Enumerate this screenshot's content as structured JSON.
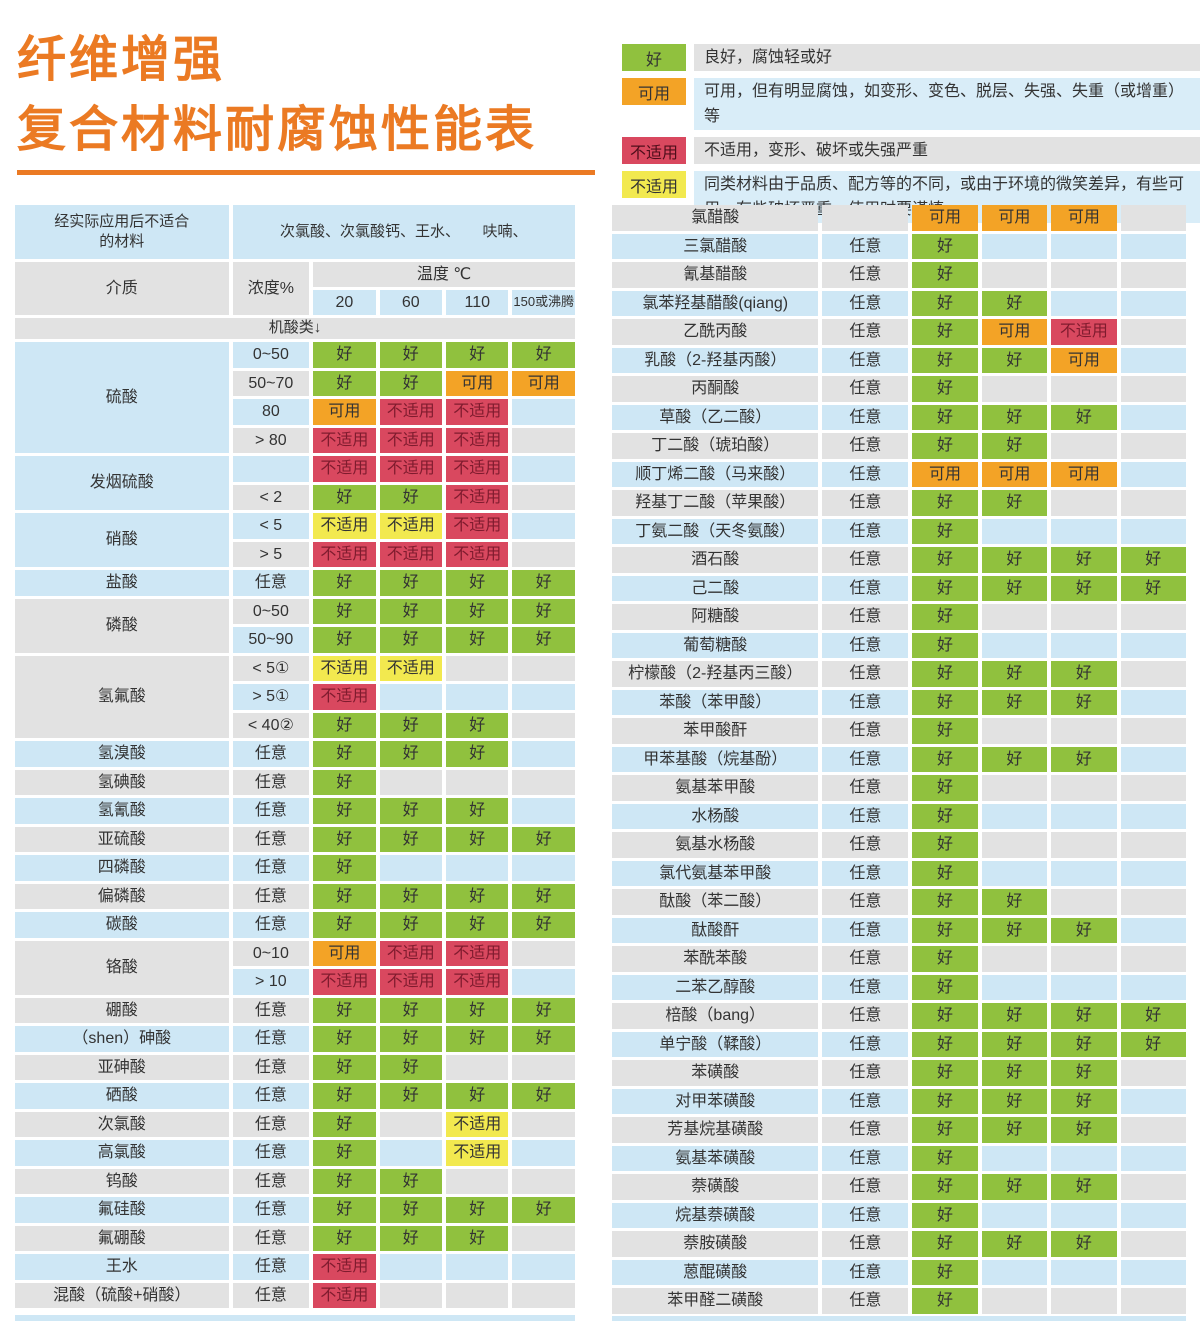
{
  "title": {
    "line1": "纤维增强",
    "line2": "复合材料耐腐蚀性能表"
  },
  "colors": {
    "accent": "#EB7A23",
    "good": "#90C13E",
    "usable": "#F3A326",
    "bad": "#D9485F",
    "caution": "#F2E94F",
    "row_blue": "#CEE7F5",
    "row_gray": "#E2E2E2",
    "bad_text": "#7F1B2E",
    "text": "#333333"
  },
  "legend": [
    {
      "label": "好",
      "type": "good",
      "desc": "良好，腐蚀轻或好"
    },
    {
      "label": "可用",
      "type": "usable",
      "desc": "可用，但有明显腐蚀，如变形、变色、脱层、失强、失重（或增重）等"
    },
    {
      "label": "不适用",
      "type": "bad",
      "desc": "不适用，变形、破坏或失强严重"
    },
    {
      "label": "不适用",
      "type": "caution",
      "desc": "同类材料由于品质、配方等的不同，或由于环境的微笑差异，有些可用，有些破坏严重，使用时要谨慎"
    }
  ],
  "cell_labels": {
    "good": "好",
    "usable": "可用",
    "bad": "不适用",
    "caution": "不适用"
  },
  "left_table": {
    "header": {
      "unsuitable_label": "经实际应用后不适合\n的材料",
      "unsuitable_value": "次氯酸、次氯酸钙、王水、　　呋喃、",
      "medium": "介质",
      "concentration": "浓度%",
      "temperature": "温度 ℃",
      "temps": [
        "20",
        "60",
        "110",
        "150或沸腾"
      ],
      "section": "机酸类↓"
    },
    "groups": [
      {
        "medium": "硫酸",
        "rows": [
          {
            "conc": "0~50",
            "cells": [
              "good",
              "good",
              "good",
              "good"
            ]
          },
          {
            "conc": "50~70",
            "cells": [
              "good",
              "good",
              "usable",
              "usable"
            ]
          },
          {
            "conc": "80",
            "cells": [
              "usable",
              "bad",
              "bad",
              ""
            ]
          },
          {
            "conc": "> 80",
            "cells": [
              "bad",
              "bad",
              "bad",
              ""
            ]
          }
        ]
      },
      {
        "medium": "发烟硫酸",
        "rows": [
          {
            "conc": "",
            "cells": [
              "bad",
              "bad",
              "bad",
              ""
            ]
          },
          {
            "conc": "< 2",
            "cells": [
              "good",
              "good",
              "bad",
              ""
            ]
          }
        ]
      },
      {
        "medium": "硝酸",
        "rows": [
          {
            "conc": "< 5",
            "cells": [
              "caution",
              "caution",
              "bad",
              ""
            ]
          },
          {
            "conc": "> 5",
            "cells": [
              "bad",
              "bad",
              "bad",
              ""
            ]
          }
        ]
      },
      {
        "medium": "盐酸",
        "rows": [
          {
            "conc": "任意",
            "cells": [
              "good",
              "good",
              "good",
              "good"
            ]
          }
        ]
      },
      {
        "medium": "磷酸",
        "rows": [
          {
            "conc": "0~50",
            "cells": [
              "good",
              "good",
              "good",
              "good"
            ]
          },
          {
            "conc": "50~90",
            "cells": [
              "good",
              "good",
              "good",
              "good"
            ]
          }
        ]
      },
      {
        "medium": "氢氟酸",
        "rows": [
          {
            "conc": "< 5①",
            "cells": [
              "caution",
              "caution",
              "",
              ""
            ]
          },
          {
            "conc": "> 5①",
            "cells": [
              "bad",
              "",
              "",
              ""
            ]
          },
          {
            "conc": "< 40②",
            "cells": [
              "good",
              "good",
              "good",
              ""
            ]
          }
        ]
      },
      {
        "medium": "氢溴酸",
        "rows": [
          {
            "conc": "任意",
            "cells": [
              "good",
              "good",
              "good",
              ""
            ]
          }
        ]
      },
      {
        "medium": "氢碘酸",
        "rows": [
          {
            "conc": "任意",
            "cells": [
              "good",
              "",
              "",
              ""
            ]
          }
        ]
      },
      {
        "medium": "氢氰酸",
        "rows": [
          {
            "conc": "任意",
            "cells": [
              "good",
              "good",
              "good",
              ""
            ]
          }
        ]
      },
      {
        "medium": "亚硫酸",
        "rows": [
          {
            "conc": "任意",
            "cells": [
              "good",
              "good",
              "good",
              "good"
            ]
          }
        ]
      },
      {
        "medium": "四磷酸",
        "rows": [
          {
            "conc": "任意",
            "cells": [
              "good",
              "",
              "",
              ""
            ]
          }
        ]
      },
      {
        "medium": "偏磷酸",
        "rows": [
          {
            "conc": "任意",
            "cells": [
              "good",
              "good",
              "good",
              "good"
            ]
          }
        ]
      },
      {
        "medium": "碳酸",
        "rows": [
          {
            "conc": "任意",
            "cells": [
              "good",
              "good",
              "good",
              "good"
            ]
          }
        ]
      },
      {
        "medium": "铬酸",
        "rows": [
          {
            "conc": "0~10",
            "cells": [
              "usable",
              "bad",
              "bad",
              ""
            ]
          },
          {
            "conc": "> 10",
            "cells": [
              "bad",
              "bad",
              "bad",
              ""
            ]
          }
        ]
      },
      {
        "medium": "硼酸",
        "rows": [
          {
            "conc": "任意",
            "cells": [
              "good",
              "good",
              "good",
              "good"
            ]
          }
        ]
      },
      {
        "medium": "（shen）砷酸",
        "rows": [
          {
            "conc": "任意",
            "cells": [
              "good",
              "good",
              "good",
              "good"
            ]
          }
        ]
      },
      {
        "medium": "亚砷酸",
        "rows": [
          {
            "conc": "任意",
            "cells": [
              "good",
              "good",
              "",
              ""
            ]
          }
        ]
      },
      {
        "medium": "硒酸",
        "rows": [
          {
            "conc": "任意",
            "cells": [
              "good",
              "good",
              "good",
              "good"
            ]
          }
        ]
      },
      {
        "medium": "次氯酸",
        "rows": [
          {
            "conc": "任意",
            "cells": [
              "good",
              "",
              "caution",
              ""
            ]
          }
        ]
      },
      {
        "medium": "高氯酸",
        "rows": [
          {
            "conc": "任意",
            "cells": [
              "good",
              "",
              "caution",
              ""
            ]
          }
        ]
      },
      {
        "medium": "钨酸",
        "rows": [
          {
            "conc": "任意",
            "cells": [
              "good",
              "good",
              "",
              ""
            ]
          }
        ]
      },
      {
        "medium": "氟硅酸",
        "rows": [
          {
            "conc": "任意",
            "cells": [
              "good",
              "good",
              "good",
              "good"
            ]
          }
        ]
      },
      {
        "medium": "氟硼酸",
        "rows": [
          {
            "conc": "任意",
            "cells": [
              "good",
              "good",
              "good",
              ""
            ]
          }
        ]
      },
      {
        "medium": "王水",
        "rows": [
          {
            "conc": "任意",
            "cells": [
              "bad",
              "",
              "",
              ""
            ]
          }
        ]
      },
      {
        "medium": "混酸（硫酸+硝酸）",
        "rows": [
          {
            "conc": "任意",
            "cells": [
              "bad",
              "",
              "",
              ""
            ]
          }
        ]
      }
    ]
  },
  "right_table": {
    "rows": [
      {
        "name": "氯醋酸",
        "conc": "",
        "cells": [
          "usable",
          "usable",
          "usable",
          ""
        ]
      },
      {
        "name": "三氯醋酸",
        "conc": "任意",
        "cells": [
          "good",
          "",
          "",
          ""
        ]
      },
      {
        "name": "氰基醋酸",
        "conc": "任意",
        "cells": [
          "good",
          "",
          "",
          ""
        ]
      },
      {
        "name": "氯苯羟基醋酸(qiang)",
        "conc": "任意",
        "cells": [
          "good",
          "good",
          "",
          ""
        ]
      },
      {
        "name": "乙酰丙酸",
        "conc": "任意",
        "cells": [
          "good",
          "usable",
          "bad",
          ""
        ]
      },
      {
        "name": "乳酸（2-羟基丙酸）",
        "conc": "任意",
        "cells": [
          "good",
          "good",
          "usable",
          ""
        ]
      },
      {
        "name": "丙酮酸",
        "conc": "任意",
        "cells": [
          "good",
          "",
          "",
          ""
        ]
      },
      {
        "name": "草酸（乙二酸）",
        "conc": "任意",
        "cells": [
          "good",
          "good",
          "good",
          ""
        ]
      },
      {
        "name": "丁二酸（琥珀酸）",
        "conc": "任意",
        "cells": [
          "good",
          "good",
          "",
          ""
        ]
      },
      {
        "name": "顺丁烯二酸（马来酸）",
        "conc": "任意",
        "cells": [
          "usable",
          "usable",
          "usable",
          ""
        ]
      },
      {
        "name": "羟基丁二酸（苹果酸）",
        "conc": "任意",
        "cells": [
          "good",
          "good",
          "",
          ""
        ]
      },
      {
        "name": "丁氨二酸（天冬氨酸）",
        "conc": "任意",
        "cells": [
          "good",
          "",
          "",
          ""
        ]
      },
      {
        "name": "酒石酸",
        "conc": "任意",
        "cells": [
          "good",
          "good",
          "good",
          "good"
        ]
      },
      {
        "name": "己二酸",
        "conc": "任意",
        "cells": [
          "good",
          "good",
          "good",
          "good"
        ]
      },
      {
        "name": "阿糖酸",
        "conc": "任意",
        "cells": [
          "good",
          "",
          "",
          ""
        ]
      },
      {
        "name": "葡萄糖酸",
        "conc": "任意",
        "cells": [
          "good",
          "",
          "",
          ""
        ]
      },
      {
        "name": "柠檬酸（2-羟基丙三酸）",
        "conc": "任意",
        "cells": [
          "good",
          "good",
          "good",
          ""
        ]
      },
      {
        "name": "苯酸（苯甲酸）",
        "conc": "任意",
        "cells": [
          "good",
          "good",
          "good",
          ""
        ]
      },
      {
        "name": "苯甲酸酐",
        "conc": "任意",
        "cells": [
          "good",
          "",
          "",
          ""
        ]
      },
      {
        "name": "甲苯基酸（烷基酚）",
        "conc": "任意",
        "cells": [
          "good",
          "good",
          "good",
          ""
        ]
      },
      {
        "name": "氨基苯甲酸",
        "conc": "任意",
        "cells": [
          "good",
          "",
          "",
          ""
        ]
      },
      {
        "name": "水杨酸",
        "conc": "任意",
        "cells": [
          "good",
          "",
          "",
          ""
        ]
      },
      {
        "name": "氨基水杨酸",
        "conc": "任意",
        "cells": [
          "good",
          "",
          "",
          ""
        ]
      },
      {
        "name": "氯代氨基苯甲酸",
        "conc": "任意",
        "cells": [
          "good",
          "",
          "",
          ""
        ]
      },
      {
        "name": "酞酸（苯二酸）",
        "conc": "任意",
        "cells": [
          "good",
          "good",
          "",
          ""
        ]
      },
      {
        "name": "酞酸酐",
        "conc": "任意",
        "cells": [
          "good",
          "good",
          "good",
          ""
        ]
      },
      {
        "name": "苯酰苯酸",
        "conc": "任意",
        "cells": [
          "good",
          "",
          "",
          ""
        ]
      },
      {
        "name": "二苯乙醇酸",
        "conc": "任意",
        "cells": [
          "good",
          "",
          "",
          ""
        ]
      },
      {
        "name": "棓酸（bang）",
        "conc": "任意",
        "cells": [
          "good",
          "good",
          "good",
          "good"
        ]
      },
      {
        "name": "单宁酸（鞣酸）",
        "conc": "任意",
        "cells": [
          "good",
          "good",
          "good",
          "good"
        ]
      },
      {
        "name": "苯磺酸",
        "conc": "任意",
        "cells": [
          "good",
          "good",
          "good",
          ""
        ]
      },
      {
        "name": "对甲苯磺酸",
        "conc": "任意",
        "cells": [
          "good",
          "good",
          "good",
          ""
        ]
      },
      {
        "name": "芳基烷基磺酸",
        "conc": "任意",
        "cells": [
          "good",
          "good",
          "good",
          ""
        ]
      },
      {
        "name": "氨基苯磺酸",
        "conc": "任意",
        "cells": [
          "good",
          "",
          "",
          ""
        ]
      },
      {
        "name": "萘磺酸",
        "conc": "任意",
        "cells": [
          "good",
          "good",
          "good",
          ""
        ]
      },
      {
        "name": "烷基萘磺酸",
        "conc": "任意",
        "cells": [
          "good",
          "",
          "",
          ""
        ]
      },
      {
        "name": "萘胺磺酸",
        "conc": "任意",
        "cells": [
          "good",
          "good",
          "good",
          ""
        ]
      },
      {
        "name": "蒽醌磺酸",
        "conc": "任意",
        "cells": [
          "good",
          "",
          "",
          ""
        ]
      },
      {
        "name": "苯甲醛二磺酸",
        "conc": "任意",
        "cells": [
          "good",
          "",
          "",
          ""
        ]
      }
    ]
  }
}
